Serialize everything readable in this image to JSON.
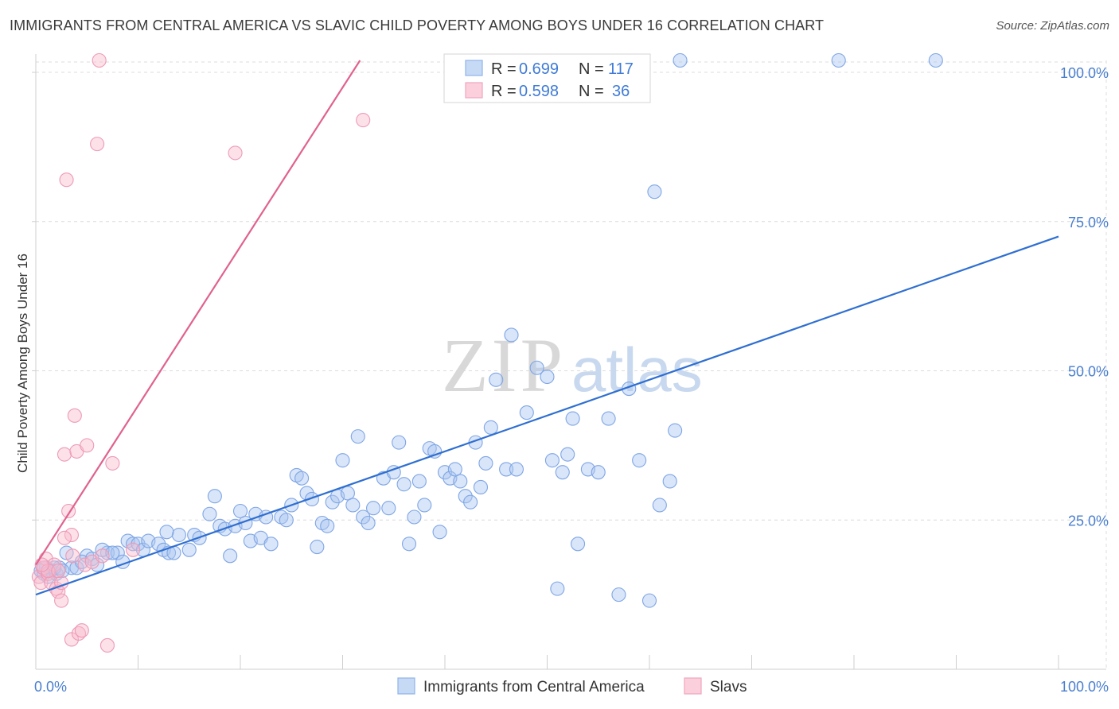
{
  "header": {
    "title": "IMMIGRANTS FROM CENTRAL AMERICA VS SLAVIC CHILD POVERTY AMONG BOYS UNDER 16 CORRELATION CHART",
    "source": "Source: ZipAtlas.com"
  },
  "watermark": {
    "zip": "ZIP",
    "atlas": "atlas"
  },
  "legend": {
    "rows": [
      {
        "r_label": "R = ",
        "r_value": "0.699",
        "n_label": "N = ",
        "n_value": "117",
        "color": "#5b8ee0"
      },
      {
        "r_label": "R = ",
        "r_value": "0.598",
        "n_label": "N = ",
        "n_value": "36",
        "color": "#ec8fae"
      }
    ]
  },
  "bottom_legend": [
    {
      "label": "Immigrants from Central America",
      "color": "#5b8ee0"
    },
    {
      "label": "Slavs",
      "color": "#ec8fae"
    }
  ],
  "chart_data": {
    "type": "scatter",
    "title": "IMMIGRANTS FROM CENTRAL AMERICA VS SLAVIC CHILD POVERTY AMONG BOYS UNDER 16 CORRELATION CHART",
    "xlabel": "",
    "ylabel": "Child Poverty Among Boys Under 16",
    "xlim": [
      0,
      100
    ],
    "ylim": [
      0,
      102
    ],
    "x_tick_labels": [
      {
        "value": 0,
        "label": "0.0%"
      },
      {
        "value": 100,
        "label": "100.0%"
      }
    ],
    "y_tick_labels": [
      {
        "value": 25,
        "label": "25.0%"
      },
      {
        "value": 50,
        "label": "50.0%"
      },
      {
        "value": 75,
        "label": "75.0%"
      },
      {
        "value": 100,
        "label": "100.0%"
      }
    ],
    "grid": true,
    "legend_position": "top-center",
    "series": [
      {
        "name": "Immigrants from Central America",
        "color": "#5b8ee0",
        "trendline": {
          "x": [
            0,
            100
          ],
          "y": [
            12.5,
            72.5
          ]
        },
        "points": [
          [
            0.5,
            16.5
          ],
          [
            0.8,
            16
          ],
          [
            1,
            17
          ],
          [
            1.2,
            15.5
          ],
          [
            1.5,
            16.5
          ],
          [
            2,
            16
          ],
          [
            2.3,
            17
          ],
          [
            3,
            19.5
          ],
          [
            3.5,
            17
          ],
          [
            4,
            17
          ],
          [
            5,
            19
          ],
          [
            5.5,
            18.5
          ],
          [
            6,
            17.5
          ],
          [
            7,
            19.5
          ],
          [
            8,
            19.5
          ],
          [
            8.5,
            18
          ],
          [
            9,
            21.5
          ],
          [
            9.5,
            21
          ],
          [
            10,
            21
          ],
          [
            10.5,
            20
          ],
          [
            11,
            21.5
          ],
          [
            12,
            21
          ],
          [
            12.5,
            20
          ],
          [
            13,
            19.5
          ],
          [
            13.5,
            19.5
          ],
          [
            14,
            22.5
          ],
          [
            15,
            20
          ],
          [
            15.5,
            22.5
          ],
          [
            16,
            22
          ],
          [
            17,
            26
          ],
          [
            17.5,
            29
          ],
          [
            18,
            24
          ],
          [
            18.5,
            23.5
          ],
          [
            19,
            19
          ],
          [
            19.5,
            24
          ],
          [
            20,
            26.5
          ],
          [
            20.5,
            24.5
          ],
          [
            21,
            21.5
          ],
          [
            21.5,
            26
          ],
          [
            22,
            22
          ],
          [
            22.5,
            25.5
          ],
          [
            23,
            21
          ],
          [
            24,
            25.5
          ],
          [
            24.5,
            25
          ],
          [
            25,
            27.5
          ],
          [
            25.5,
            32.5
          ],
          [
            26,
            32
          ],
          [
            26.5,
            29.5
          ],
          [
            27,
            28.5
          ],
          [
            27.5,
            20.5
          ],
          [
            28,
            24.5
          ],
          [
            28.5,
            24
          ],
          [
            29,
            28
          ],
          [
            29.5,
            29
          ],
          [
            30,
            35
          ],
          [
            30.5,
            29.5
          ],
          [
            31,
            27.5
          ],
          [
            31.5,
            39
          ],
          [
            32,
            25.5
          ],
          [
            32.5,
            24.5
          ],
          [
            33,
            27
          ],
          [
            34,
            32
          ],
          [
            34.5,
            27
          ],
          [
            35,
            33
          ],
          [
            35.5,
            38
          ],
          [
            36,
            31
          ],
          [
            36.5,
            21
          ],
          [
            37,
            25.5
          ],
          [
            37.5,
            31.5
          ],
          [
            38,
            27.5
          ],
          [
            38.5,
            37
          ],
          [
            39,
            36.5
          ],
          [
            39.5,
            23
          ],
          [
            40,
            33
          ],
          [
            40.5,
            32
          ],
          [
            41,
            33.5
          ],
          [
            41.5,
            31.5
          ],
          [
            42,
            29
          ],
          [
            42.5,
            28
          ],
          [
            43,
            38
          ],
          [
            43.5,
            30.5
          ],
          [
            44,
            34.5
          ],
          [
            44.5,
            40.5
          ],
          [
            45,
            48.5
          ],
          [
            46,
            33.5
          ],
          [
            46.5,
            56
          ],
          [
            47,
            33.5
          ],
          [
            48,
            43
          ],
          [
            49,
            50.5
          ],
          [
            50,
            49
          ],
          [
            50.5,
            35
          ],
          [
            51,
            13.5
          ],
          [
            51.5,
            33
          ],
          [
            52,
            36
          ],
          [
            52.5,
            42
          ],
          [
            53,
            21
          ],
          [
            54,
            33.5
          ],
          [
            55,
            33
          ],
          [
            56,
            42
          ],
          [
            57,
            12.5
          ],
          [
            60,
            11.5
          ],
          [
            58,
            47
          ],
          [
            59,
            35
          ],
          [
            60.5,
            80
          ],
          [
            61,
            27.5
          ],
          [
            62,
            31.5
          ],
          [
            62.5,
            40
          ],
          [
            63,
            102
          ],
          [
            78.5,
            102
          ],
          [
            88,
            102
          ],
          [
            0.8,
            17
          ],
          [
            1.8,
            17
          ],
          [
            2.6,
            16.5
          ],
          [
            4.5,
            18
          ],
          [
            6.5,
            20
          ],
          [
            7.5,
            19.5
          ],
          [
            12.8,
            23
          ]
        ]
      },
      {
        "name": "Slavs",
        "color": "#ec8fae",
        "trendline": {
          "x": [
            0,
            31.7
          ],
          "y": [
            17.5,
            102
          ]
        },
        "points": [
          [
            0.3,
            15.5
          ],
          [
            0.5,
            14.5
          ],
          [
            0.7,
            17
          ],
          [
            1,
            18.5
          ],
          [
            1.2,
            16
          ],
          [
            1.5,
            14.5
          ],
          [
            1.8,
            17.5
          ],
          [
            2,
            13.5
          ],
          [
            2.2,
            13
          ],
          [
            2.5,
            14.5
          ],
          [
            2.5,
            11.5
          ],
          [
            2.8,
            36
          ],
          [
            3,
            82
          ],
          [
            3.2,
            26.5
          ],
          [
            3.5,
            5
          ],
          [
            3.5,
            22.5
          ],
          [
            3.8,
            42.5
          ],
          [
            4,
            36.5
          ],
          [
            4.2,
            6
          ],
          [
            4.5,
            6.5
          ],
          [
            4.8,
            17.5
          ],
          [
            5,
            37.5
          ],
          [
            5.5,
            18
          ],
          [
            6,
            88
          ],
          [
            6.2,
            102
          ],
          [
            6.5,
            19
          ],
          [
            7,
            4
          ],
          [
            7.5,
            34.5
          ],
          [
            9.5,
            20
          ],
          [
            19.5,
            86.5
          ],
          [
            32,
            92
          ],
          [
            1.2,
            16.5
          ],
          [
            2.2,
            16.5
          ],
          [
            2.8,
            22
          ],
          [
            0.6,
            17.5
          ],
          [
            3.6,
            19
          ]
        ]
      }
    ]
  }
}
